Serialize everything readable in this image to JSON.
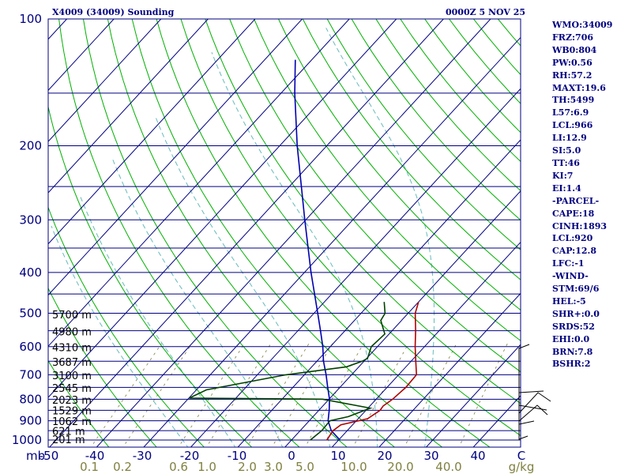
{
  "header": {
    "title": "X4009 (34009) Sounding",
    "datetime": "0000Z  5 NOV 25"
  },
  "indices": [
    "WMO:34009",
    "FRZ:706",
    "WB0:804",
    "PW:0.56",
    "RH:57.2",
    "MAXT:19.6",
    "TH:5499",
    "L57:6.9",
    "LCL:966",
    "LI:12.9",
    "SI:5.0",
    "TT:46",
    "KI:7",
    "EI:1.4",
    "-PARCEL-",
    "CAPE:18",
    "CINH:1893",
    "LCL:920",
    "CAP:12.8",
    "LFC:-1",
    "-WIND-",
    "STM:69/6",
    "HEL:-5",
    "SHR+:0.0",
    "SRDS:52",
    "EHI:0.0",
    "BRN:7.8",
    "BSHR:2"
  ],
  "colors": {
    "frame": "#000080",
    "isobar": "#000080",
    "isotherm": "#000080",
    "dry_adiabat": "#00b000",
    "moist_adiabat": "#66bbbb",
    "mixing_ratio": "#808040",
    "temperature": "#b00000",
    "dewpoint": "#004000",
    "parcel": "#0000b0",
    "mixing_label": "#808040"
  },
  "chart_data": {
    "type": "skew-t",
    "title": "X4009 (34009) Sounding",
    "pressure_unit": "mb",
    "mixing_ratio_unit": "g/kg",
    "pressure_range": [
      1050,
      100
    ],
    "temperature_range": [
      -50,
      50
    ],
    "pressure_labels": [
      100,
      200,
      300,
      400,
      500,
      600,
      700,
      800,
      900,
      1000
    ],
    "isobars": [
      100,
      150,
      200,
      250,
      300,
      350,
      400,
      450,
      500,
      550,
      600,
      650,
      700,
      750,
      800,
      850,
      900,
      950,
      1000
    ],
    "temperature_labels": [
      "-50",
      "-40",
      "-30",
      "-20",
      "-10",
      "0",
      "10",
      "20",
      "30",
      "40",
      "C"
    ],
    "mixing_ratio_labels": [
      {
        "label": "0.1",
        "value": 0.1
      },
      {
        "label": "0.2",
        "value": 0.2
      },
      {
        "label": "0.6",
        "value": 0.6
      },
      {
        "label": "1.0",
        "value": 1.0
      },
      {
        "label": "2.0",
        "value": 2.0
      },
      {
        "label": "3.0",
        "value": 3.0
      },
      {
        "label": "5.0",
        "value": 5.0
      },
      {
        "label": "10.0",
        "value": 10.0
      },
      {
        "label": "20.0",
        "value": 20.0
      },
      {
        "label": "40.0",
        "value": 40.0
      }
    ],
    "height_labels": [
      {
        "label": "5700 m",
        "p": 505
      },
      {
        "label": "4980 m",
        "p": 555
      },
      {
        "label": "4310 m",
        "p": 605
      },
      {
        "label": "3687 m",
        "p": 655
      },
      {
        "label": "3100 m",
        "p": 705
      },
      {
        "label": "2545 m",
        "p": 755
      },
      {
        "label": "2023 m",
        "p": 805
      },
      {
        "label": "1529 m",
        "p": 855
      },
      {
        "label": "1062 m",
        "p": 905
      },
      {
        "label": "621 m",
        "p": 955
      },
      {
        "label": "201 m",
        "p": 1000
      }
    ],
    "temperature_profile": [
      {
        "p": 1000,
        "t": 7.5
      },
      {
        "p": 950,
        "t": 7.0
      },
      {
        "p": 920,
        "t": 7.5
      },
      {
        "p": 890,
        "t": 12
      },
      {
        "p": 850,
        "t": 13
      },
      {
        "p": 830,
        "t": 12.8
      },
      {
        "p": 800,
        "t": 13.5
      },
      {
        "p": 750,
        "t": 14.0
      },
      {
        "p": 700,
        "t": 13.8
      },
      {
        "p": 650,
        "t": 11.0
      },
      {
        "p": 600,
        "t": 8.0
      },
      {
        "p": 550,
        "t": 5.0
      },
      {
        "p": 500,
        "t": 1.5
      },
      {
        "p": 470,
        "t": 0.0
      }
    ],
    "dewpoint_profile": [
      {
        "p": 1000,
        "t": 4.0
      },
      {
        "p": 950,
        "t": 4.6
      },
      {
        "p": 900,
        "t": 4.4
      },
      {
        "p": 880,
        "t": 7.5
      },
      {
        "p": 840,
        "t": 10.5
      },
      {
        "p": 800,
        "t": -1.4
      },
      {
        "p": 795,
        "t": -29.9
      },
      {
        "p": 760,
        "t": -27.9
      },
      {
        "p": 700,
        "t": -13.9
      },
      {
        "p": 670,
        "t": -2.6
      },
      {
        "p": 650,
        "t": -0.4
      },
      {
        "p": 640,
        "t": 0.2
      },
      {
        "p": 600,
        "t": -1.3
      },
      {
        "p": 560,
        "t": -0.9
      },
      {
        "p": 520,
        "t": -4.4
      },
      {
        "p": 500,
        "t": -4.9
      },
      {
        "p": 470,
        "t": -7.3
      }
    ],
    "parcel_path": [
      {
        "p": 1000,
        "t": 10.3
      },
      {
        "p": 950,
        "t": 6.6
      },
      {
        "p": 900,
        "t": 4.0
      },
      {
        "p": 850,
        "t": 2.2
      },
      {
        "p": 800,
        "t": 0.1
      },
      {
        "p": 750,
        "t": -2.6
      },
      {
        "p": 700,
        "t": -5.4
      },
      {
        "p": 650,
        "t": -8.6
      },
      {
        "p": 600,
        "t": -11.6
      },
      {
        "p": 550,
        "t": -15.2
      },
      {
        "p": 500,
        "t": -19.2
      },
      {
        "p": 400,
        "t": -28.6
      },
      {
        "p": 300,
        "t": -40.2
      },
      {
        "p": 200,
        "t": -56.3
      },
      {
        "p": 150,
        "t": -67.1
      },
      {
        "p": 125,
        "t": -73.5
      }
    ]
  }
}
